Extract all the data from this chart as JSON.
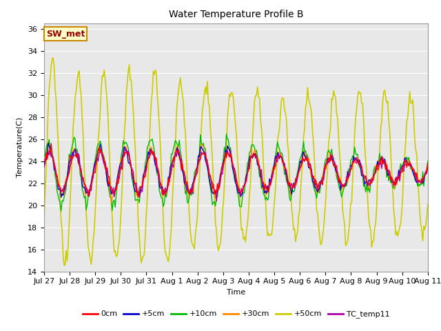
{
  "title": "Water Temperature Profile B",
  "xlabel": "Time",
  "ylabel": "Temperature(C)",
  "ylim": [
    14,
    36.5
  ],
  "yticks": [
    14,
    16,
    18,
    20,
    22,
    24,
    26,
    28,
    30,
    32,
    34,
    36
  ],
  "xtick_labels": [
    "Jul 27",
    "Jul 28",
    "Jul 29",
    "Jul 30",
    "Jul 31",
    "Aug 1",
    "Aug 2",
    "Aug 3",
    "Aug 4",
    "Aug 5",
    "Aug 6",
    "Aug 7",
    "Aug 8",
    "Aug 9",
    "Aug 10",
    "Aug 11"
  ],
  "bg_color": "#e8e8e8",
  "annotation_text": "SW_met",
  "annotation_bg": "#ffffcc",
  "annotation_border": "#cc8800",
  "annotation_text_color": "#990000",
  "legend_items": [
    "0cm",
    "+5cm",
    "+10cm",
    "+30cm",
    "+50cm",
    "TC_temp11"
  ],
  "line_colors": [
    "#ff0000",
    "#0000cc",
    "#00bb00",
    "#ff8800",
    "#cccc00",
    "#aa00aa"
  ],
  "line_widths": [
    1.0,
    1.0,
    1.0,
    1.0,
    1.2,
    1.0
  ],
  "fs": 8,
  "title_fs": 10
}
